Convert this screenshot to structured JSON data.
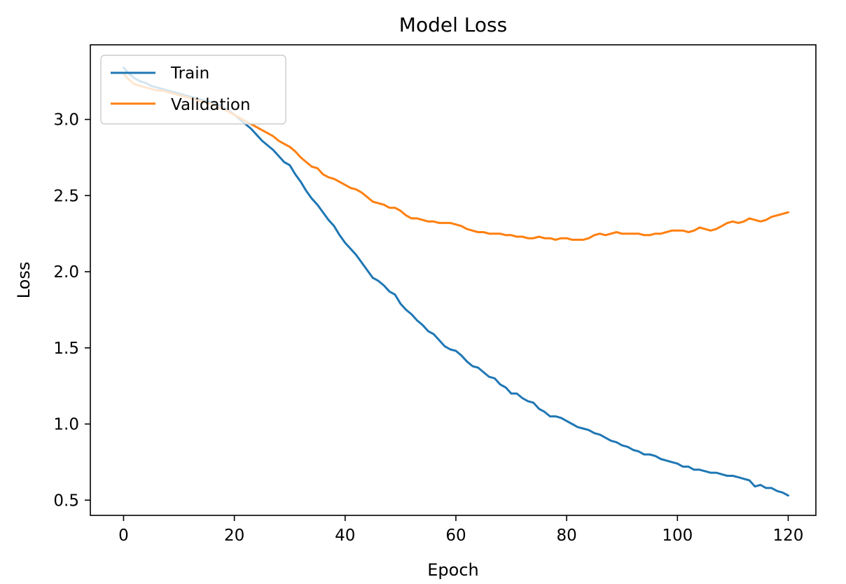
{
  "chart_data": {
    "type": "line",
    "title": "Model Loss",
    "xlabel": "Epoch",
    "ylabel": "Loss",
    "xlim": [
      -6,
      125
    ],
    "ylim": [
      0.4,
      3.49
    ],
    "xticks": [
      0,
      20,
      40,
      60,
      80,
      100,
      120
    ],
    "yticks": [
      0.5,
      1.0,
      1.5,
      2.0,
      2.5,
      3.0
    ],
    "xtick_labels": [
      "0",
      "20",
      "40",
      "60",
      "80",
      "100",
      "120"
    ],
    "ytick_labels": [
      "0.5",
      "1.0",
      "1.5",
      "2.0",
      "2.5",
      "3.0"
    ],
    "legend_position": "upper-left",
    "series": [
      {
        "name": "Train",
        "color": "#1f77b4",
        "values": [
          3.34,
          3.3,
          3.27,
          3.25,
          3.24,
          3.22,
          3.21,
          3.2,
          3.19,
          3.18,
          3.17,
          3.16,
          3.15,
          3.14,
          3.13,
          3.12,
          3.11,
          3.1,
          3.08,
          3.06,
          3.03,
          3.0,
          2.97,
          2.94,
          2.9,
          2.86,
          2.83,
          2.8,
          2.76,
          2.72,
          2.7,
          2.64,
          2.59,
          2.53,
          2.48,
          2.44,
          2.39,
          2.34,
          2.3,
          2.24,
          2.19,
          2.15,
          2.11,
          2.06,
          2.01,
          1.96,
          1.94,
          1.91,
          1.87,
          1.85,
          1.79,
          1.75,
          1.72,
          1.68,
          1.65,
          1.61,
          1.59,
          1.55,
          1.51,
          1.49,
          1.48,
          1.45,
          1.41,
          1.38,
          1.37,
          1.34,
          1.31,
          1.3,
          1.26,
          1.24,
          1.2,
          1.2,
          1.17,
          1.15,
          1.14,
          1.1,
          1.08,
          1.05,
          1.05,
          1.04,
          1.02,
          1.0,
          0.98,
          0.97,
          0.96,
          0.94,
          0.93,
          0.91,
          0.89,
          0.88,
          0.86,
          0.85,
          0.83,
          0.82,
          0.8,
          0.8,
          0.79,
          0.77,
          0.76,
          0.75,
          0.74,
          0.72,
          0.72,
          0.7,
          0.7,
          0.69,
          0.68,
          0.68,
          0.67,
          0.66,
          0.66,
          0.65,
          0.64,
          0.63,
          0.59,
          0.6,
          0.58,
          0.58,
          0.56,
          0.55,
          0.53
        ]
      },
      {
        "name": "Validation",
        "color": "#ff7f0e",
        "values": [
          3.3,
          3.26,
          3.23,
          3.22,
          3.21,
          3.2,
          3.19,
          3.19,
          3.18,
          3.17,
          3.16,
          3.15,
          3.14,
          3.13,
          3.12,
          3.11,
          3.1,
          3.08,
          3.07,
          3.05,
          3.03,
          3.01,
          2.99,
          2.97,
          2.95,
          2.93,
          2.91,
          2.89,
          2.86,
          2.84,
          2.82,
          2.79,
          2.75,
          2.72,
          2.69,
          2.68,
          2.64,
          2.62,
          2.61,
          2.59,
          2.57,
          2.55,
          2.54,
          2.52,
          2.49,
          2.46,
          2.45,
          2.44,
          2.42,
          2.42,
          2.4,
          2.37,
          2.35,
          2.35,
          2.34,
          2.33,
          2.33,
          2.32,
          2.32,
          2.32,
          2.31,
          2.3,
          2.28,
          2.27,
          2.26,
          2.26,
          2.25,
          2.25,
          2.25,
          2.24,
          2.24,
          2.23,
          2.23,
          2.22,
          2.22,
          2.23,
          2.22,
          2.22,
          2.21,
          2.22,
          2.22,
          2.21,
          2.21,
          2.21,
          2.22,
          2.24,
          2.25,
          2.24,
          2.25,
          2.26,
          2.25,
          2.25,
          2.25,
          2.25,
          2.24,
          2.24,
          2.25,
          2.25,
          2.26,
          2.27,
          2.27,
          2.27,
          2.26,
          2.27,
          2.29,
          2.28,
          2.27,
          2.28,
          2.3,
          2.32,
          2.33,
          2.32,
          2.33,
          2.35,
          2.34,
          2.33,
          2.34,
          2.36,
          2.37,
          2.38,
          2.39
        ]
      }
    ]
  }
}
